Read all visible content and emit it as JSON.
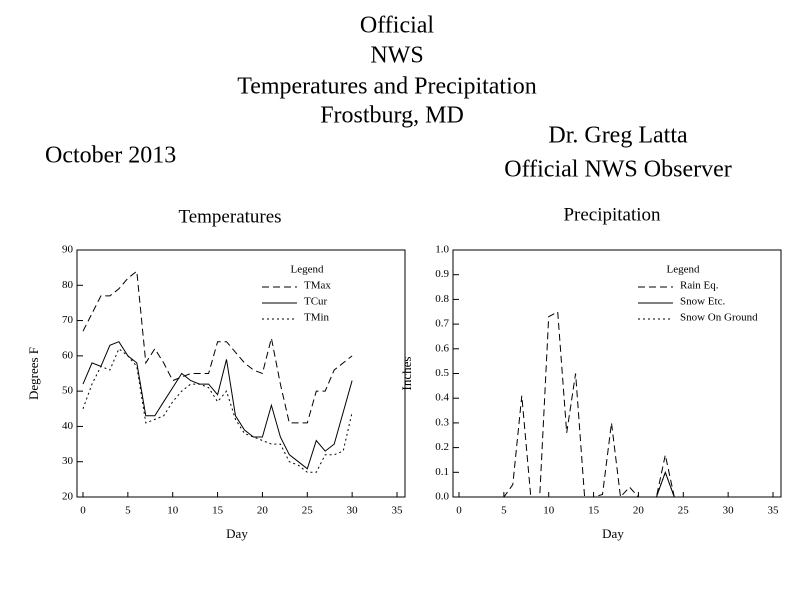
{
  "header": {
    "lines": [
      "Official",
      "NWS",
      "Temperatures and Precipitation",
      "Frostburg, MD"
    ],
    "date": "October 2013",
    "observer": [
      "Dr. Greg Latta",
      "Official NWS Observer"
    ]
  },
  "chart_data": [
    {
      "type": "line",
      "title": "Temperatures",
      "x_label": "Day",
      "y_label": "Degrees F",
      "x": [
        0,
        1,
        2,
        3,
        4,
        5,
        6,
        7,
        8,
        9,
        10,
        11,
        12,
        13,
        14,
        15,
        16,
        17,
        18,
        19,
        20,
        21,
        22,
        23,
        24,
        25,
        26,
        27,
        28,
        29,
        30
      ],
      "xlim": [
        0,
        35
      ],
      "xticks": [
        0,
        5,
        10,
        15,
        20,
        25,
        30,
        35
      ],
      "ylim": [
        20,
        90
      ],
      "yticks": [
        20,
        30,
        40,
        50,
        60,
        70,
        80,
        90
      ],
      "legend": "upper right",
      "legend_title": "Legend",
      "series": [
        {
          "name": "TMax",
          "color": "#000000",
          "style": "dashed",
          "values": [
            67,
            72,
            77,
            77,
            79,
            82,
            84,
            58,
            62,
            58,
            53,
            54,
            55,
            55,
            55,
            64,
            64,
            61,
            58,
            56,
            55,
            65,
            52,
            41,
            41,
            41,
            50,
            50,
            56,
            58,
            60
          ]
        },
        {
          "name": "TCur",
          "color": "#000000",
          "style": "solid",
          "values": [
            52,
            58,
            57,
            63,
            64,
            60,
            58,
            43,
            43,
            47,
            51,
            55,
            53,
            52,
            52,
            49,
            59,
            43,
            39,
            37,
            37,
            46,
            37,
            32,
            30,
            28,
            36,
            33,
            35,
            44,
            53
          ]
        },
        {
          "name": "TMin",
          "color": "#000000",
          "style": "dotted",
          "values": [
            45,
            52,
            57,
            56,
            62,
            60,
            57,
            41,
            42,
            43,
            47,
            50,
            52,
            52,
            51,
            47,
            50,
            42,
            38,
            37,
            36,
            35,
            35,
            30,
            29,
            27,
            27,
            32,
            32,
            33,
            44
          ]
        }
      ]
    },
    {
      "type": "line",
      "title": "Precipitation",
      "x_label": "Day",
      "y_label": "Inches",
      "x": [
        0,
        1,
        2,
        3,
        4,
        5,
        6,
        7,
        8,
        9,
        10,
        11,
        12,
        13,
        14,
        15,
        16,
        17,
        18,
        19,
        20,
        21,
        22,
        23,
        24,
        25,
        26,
        27,
        28,
        29,
        30
      ],
      "xlim": [
        0,
        35
      ],
      "xticks": [
        0,
        5,
        10,
        15,
        20,
        25,
        30,
        35
      ],
      "ylim": [
        0,
        1
      ],
      "yticks": [
        {
          "value": 0,
          "label": "0.0"
        },
        0.1,
        0.2,
        0.3,
        0.4,
        0.5,
        0.6,
        0.7,
        0.8,
        0.9,
        {
          "value": 1,
          "label": "1.0"
        }
      ],
      "legend": "upper right",
      "legend_title": "Legend",
      "series": [
        {
          "name": "Rain Eq.",
          "color": "#000000",
          "style": "dashed",
          "values": [
            0,
            0,
            0,
            0,
            0,
            0,
            0.05,
            0.41,
            0,
            0,
            0.73,
            0.75,
            0.26,
            0.5,
            0,
            0,
            0.01,
            0.3,
            0,
            0.04,
            0,
            0,
            0,
            0.17,
            0,
            0,
            0,
            0,
            0,
            0,
            0
          ]
        },
        {
          "name": "Snow Etc.",
          "color": "#000000",
          "style": "solid",
          "values": [
            0,
            0,
            0,
            0,
            0,
            0,
            0,
            0,
            0,
            0,
            0,
            0,
            0,
            0,
            0,
            0,
            0,
            0,
            0,
            0,
            0,
            0,
            0,
            0.1,
            0,
            0,
            0,
            0,
            0,
            0,
            0
          ]
        },
        {
          "name": "Snow On Ground",
          "color": "#000000",
          "style": "dotted",
          "values": [
            0,
            0,
            0,
            0,
            0,
            0,
            0,
            0,
            0,
            0,
            0,
            0,
            0,
            0,
            0,
            0,
            0,
            0,
            0,
            0,
            0,
            0,
            0,
            0.1,
            0,
            0,
            0,
            0,
            0,
            0,
            0
          ]
        }
      ]
    }
  ]
}
